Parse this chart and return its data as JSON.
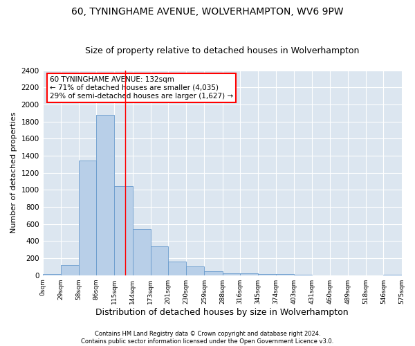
{
  "title": "60, TYNINGHAME AVENUE, WOLVERHAMPTON, WV6 9PW",
  "subtitle": "Size of property relative to detached houses in Wolverhampton",
  "xlabel": "Distribution of detached houses by size in Wolverhampton",
  "ylabel": "Number of detached properties",
  "annotation_line1": "60 TYNINGHAME AVENUE: 132sqm",
  "annotation_line2": "← 71% of detached houses are smaller (4,035)",
  "annotation_line3": "29% of semi-detached houses are larger (1,627) →",
  "footer_line1": "Contains HM Land Registry data © Crown copyright and database right 2024.",
  "footer_line2": "Contains public sector information licensed under the Open Government Licence v3.0.",
  "bar_color": "#b8cfe8",
  "bar_edge_color": "#6699cc",
  "background_color": "#dce6f0",
  "red_line_x": 132,
  "bins": [
    0,
    29,
    58,
    86,
    115,
    144,
    173,
    201,
    230,
    259,
    288,
    316,
    345,
    374,
    403,
    431,
    460,
    489,
    518,
    546,
    575
  ],
  "counts": [
    10,
    120,
    1340,
    1880,
    1040,
    540,
    340,
    160,
    100,
    50,
    25,
    20,
    15,
    10,
    5,
    1,
    0,
    0,
    0,
    5
  ],
  "ylim": [
    0,
    2400
  ],
  "yticks": [
    0,
    200,
    400,
    600,
    800,
    1000,
    1200,
    1400,
    1600,
    1800,
    2000,
    2200,
    2400
  ],
  "annotation_box_color": "white",
  "annotation_box_edge_color": "red",
  "title_fontsize": 10,
  "subtitle_fontsize": 9,
  "ylabel_fontsize": 8,
  "xlabel_fontsize": 9
}
